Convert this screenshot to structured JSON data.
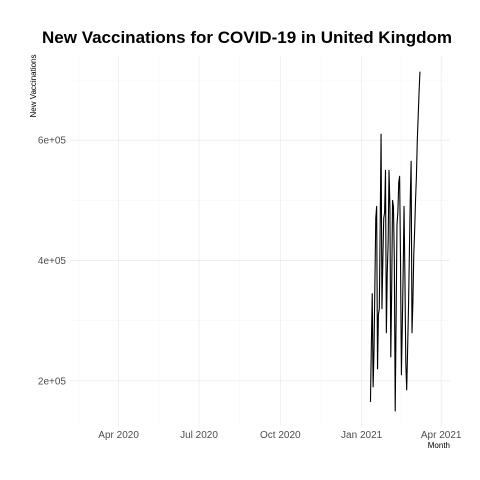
{
  "chart_data": {
    "type": "line",
    "title": "New Vaccinations for COVID-19 in United Kingdom",
    "xlabel": "Month",
    "ylabel": "New Vaccinations",
    "x_ticks": [
      "2020-04-01",
      "2020-07-01",
      "2020-10-01",
      "2021-01-01",
      "2021-04-01"
    ],
    "x_tick_labels": [
      "Apr 2020",
      "Jul 2020",
      "Oct 2020",
      "Jan 2021",
      "Apr 2021"
    ],
    "y_ticks": [
      200000,
      400000,
      600000
    ],
    "y_tick_labels": [
      "2e+05",
      "4e+05",
      "6e+05"
    ],
    "xlim": [
      "2020-02-06",
      "2021-04-11"
    ],
    "ylim": [
      125000,
      740000
    ],
    "grid": true,
    "legend": false,
    "series": [
      {
        "color": "#000000",
        "x": [
          "2021-01-11",
          "2021-01-12",
          "2021-01-13",
          "2021-01-14",
          "2021-01-15",
          "2021-01-16",
          "2021-01-17",
          "2021-01-18",
          "2021-01-19",
          "2021-01-20",
          "2021-01-21",
          "2021-01-22",
          "2021-01-23",
          "2021-01-24",
          "2021-01-25",
          "2021-01-26",
          "2021-01-27",
          "2021-01-28",
          "2021-01-29",
          "2021-01-30",
          "2021-01-31",
          "2021-02-01",
          "2021-02-02",
          "2021-02-03",
          "2021-02-04",
          "2021-02-05",
          "2021-02-06",
          "2021-02-07",
          "2021-02-08",
          "2021-02-09",
          "2021-02-10",
          "2021-02-11",
          "2021-02-12",
          "2021-02-13",
          "2021-02-14",
          "2021-02-15",
          "2021-02-16",
          "2021-02-17",
          "2021-02-18",
          "2021-02-19",
          "2021-02-20",
          "2021-02-21",
          "2021-02-22",
          "2021-02-23",
          "2021-02-24",
          "2021-02-25",
          "2021-02-26",
          "2021-02-27",
          "2021-02-28",
          "2021-03-01",
          "2021-03-02",
          "2021-03-03",
          "2021-03-04",
          "2021-03-05",
          "2021-03-06",
          "2021-03-07",
          "2021-03-08",
          "2021-03-09",
          "2021-03-10",
          "2021-03-11",
          "2021-03-12",
          "2021-03-13",
          "2021-03-14",
          "2021-03-15",
          "2021-03-16",
          "2021-03-17",
          "2021-03-18",
          "2021-03-19",
          "2021-03-20"
        ],
        "values": [
          165000,
          260000,
          345000,
          190000,
          250000,
          360000,
          470000,
          490000,
          220000,
          310000,
          320000,
          460000,
          610000,
          320000,
          400000,
          470000,
          480000,
          550000,
          280000,
          380000,
          430000,
          550000,
          490000,
          240000,
          350000,
          500000,
          490000,
          400000,
          150000,
          300000,
          460000,
          480000,
          530000,
          540000,
          400000,
          210000,
          290000,
          380000,
          490000,
          370000,
          230000,
          185000,
          250000,
          320000,
          410000,
          500000,
          565000,
          280000,
          330000,
          410000,
          450000,
          500000,
          540000,
          600000,
          640000,
          680000,
          714000,
          470000,
          300000,
          330000,
          300000,
          320000,
          330000,
          350000,
          360000,
          380000,
          400000,
          420000,
          440000
        ],
        "note_values_only_to_2021-03-08": true
      }
    ]
  }
}
